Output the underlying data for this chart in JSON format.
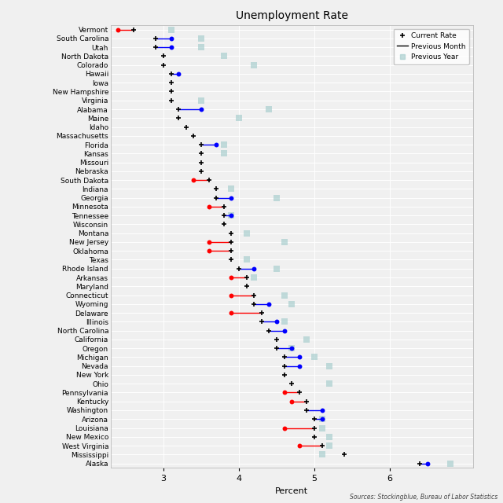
{
  "title": "Unemployment Rate",
  "xlabel": "Percent",
  "source": "Sources: Stockingblue, Bureau of Labor Statistics",
  "states": [
    "Vermont",
    "South Carolina",
    "Utah",
    "North Dakota",
    "Colorado",
    "Hawaii",
    "Iowa",
    "New Hampshire",
    "Virginia",
    "Alabama",
    "Maine",
    "Idaho",
    "Massachusetts",
    "Florida",
    "Kansas",
    "Missouri",
    "Nebraska",
    "South Dakota",
    "Indiana",
    "Georgia",
    "Minnesota",
    "Tennessee",
    "Wisconsin",
    "Montana",
    "New Jersey",
    "Oklahoma",
    "Texas",
    "Rhode Island",
    "Arkansas",
    "Maryland",
    "Connecticut",
    "Wyoming",
    "Delaware",
    "Illinois",
    "North Carolina",
    "California",
    "Oregon",
    "Michigan",
    "Nevada",
    "New York",
    "Ohio",
    "Pennsylvania",
    "Kentucky",
    "Washington",
    "Arizona",
    "Louisiana",
    "New Mexico",
    "West Virginia",
    "Mississippi",
    "Alaska"
  ],
  "current_rate": [
    2.6,
    2.9,
    2.9,
    3.0,
    3.0,
    3.1,
    3.1,
    3.1,
    3.1,
    3.2,
    3.2,
    3.3,
    3.4,
    3.5,
    3.5,
    3.5,
    3.5,
    3.6,
    3.7,
    3.7,
    3.8,
    3.8,
    3.8,
    3.9,
    3.9,
    3.9,
    3.9,
    4.0,
    4.1,
    4.1,
    4.2,
    4.2,
    4.3,
    4.3,
    4.4,
    4.5,
    4.5,
    4.6,
    4.6,
    4.6,
    4.7,
    4.8,
    4.9,
    4.9,
    5.0,
    5.0,
    5.0,
    5.1,
    5.4,
    6.4
  ],
  "prev_month": [
    2.4,
    3.1,
    3.1,
    null,
    null,
    3.2,
    null,
    null,
    null,
    3.5,
    null,
    null,
    null,
    3.7,
    null,
    null,
    null,
    3.4,
    null,
    3.9,
    3.6,
    3.9,
    null,
    null,
    3.6,
    3.6,
    null,
    4.2,
    3.9,
    null,
    3.9,
    4.4,
    3.9,
    4.5,
    4.6,
    null,
    4.7,
    4.8,
    4.8,
    null,
    null,
    4.6,
    4.7,
    5.1,
    5.1,
    4.6,
    null,
    4.8,
    null,
    6.5
  ],
  "prev_year": [
    3.1,
    3.5,
    3.5,
    3.8,
    4.2,
    null,
    null,
    null,
    3.5,
    4.4,
    4.0,
    null,
    null,
    3.8,
    3.8,
    null,
    null,
    null,
    3.9,
    4.5,
    null,
    3.9,
    null,
    4.1,
    4.6,
    null,
    4.1,
    4.5,
    4.2,
    null,
    4.6,
    4.7,
    null,
    4.6,
    null,
    4.9,
    4.7,
    5.0,
    5.2,
    null,
    5.2,
    null,
    null,
    null,
    5.1,
    5.1,
    5.2,
    5.2,
    5.1,
    6.8
  ],
  "xlim": [
    2.3,
    7.1
  ],
  "xticks": [
    3,
    4,
    5,
    6
  ],
  "bg_color": "#f0f0f0",
  "grid_color": "#ffffff",
  "prev_year_color": "#aacfcf",
  "prev_year_alpha": 0.7
}
